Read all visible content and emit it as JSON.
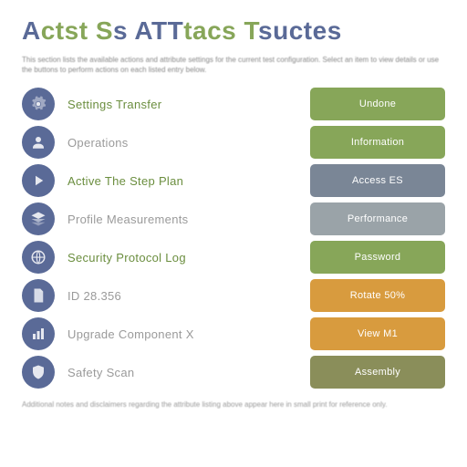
{
  "page": {
    "title_html": "<span style=\"color:#5a6a97\">A</span><span style=\"color:#87a659\">ctst</span> <span style=\"color:#87a659\">S</span><span style=\"color:#5a6a97\">s</span> <span style=\"color:#5a6a97\">ATT</span><span style=\"color:#87a659\">tacs</span> <span style=\"color:#87a659\">T</span><span style=\"color:#5a6a97\">suctes</span>",
    "subtitle": "This section lists the available actions and attribute settings for the current test configuration. Select an item to view details or use the buttons to perform actions on each listed entry below.",
    "footer": "Additional notes and disclaimers regarding the attribute listing above appear here in small print for reference only."
  },
  "colors": {
    "title_blue": "#5a6a97",
    "title_green": "#87a659",
    "icon_bg": "#5a6a97",
    "label_green": "#6b8e3f",
    "label_gray": "#9a9a9a",
    "btn_green": "#87a659",
    "btn_blue_gray": "#7a8696",
    "btn_gray": "#9aa3a8",
    "btn_orange": "#d89b3e",
    "btn_olive": "#8a8e5a"
  },
  "rows": [
    {
      "icon": "gear",
      "label": "Settings Transfer",
      "label_color": "#6b8e3f",
      "button": "Undone",
      "button_bg": "#87a659"
    },
    {
      "icon": "user",
      "label": "Operations",
      "label_color": "#9a9a9a",
      "button": "Information",
      "button_bg": "#87a659"
    },
    {
      "icon": "play",
      "label": "Active The Step Plan",
      "label_color": "#6b8e3f",
      "button": "Access ES",
      "button_bg": "#7a8696"
    },
    {
      "icon": "stack",
      "label": "Profile Measurements",
      "label_color": "#9a9a9a",
      "button": "Performance",
      "button_bg": "#9aa3a8"
    },
    {
      "icon": "globe",
      "label": "Security Protocol Log",
      "label_color": "#6b8e3f",
      "button": "Password",
      "button_bg": "#87a659"
    },
    {
      "icon": "doc",
      "label": "ID 28.356",
      "label_color": "#9a9a9a",
      "button": "Rotate 50%",
      "button_bg": "#d89b3e"
    },
    {
      "icon": "chart",
      "label": "Upgrade Component X",
      "label_color": "#9a9a9a",
      "button": "View M1",
      "button_bg": "#d89b3e"
    },
    {
      "icon": "shield",
      "label": "Safety Scan",
      "label_color": "#9a9a9a",
      "button": "Assembly",
      "button_bg": "#8a8e5a"
    }
  ]
}
